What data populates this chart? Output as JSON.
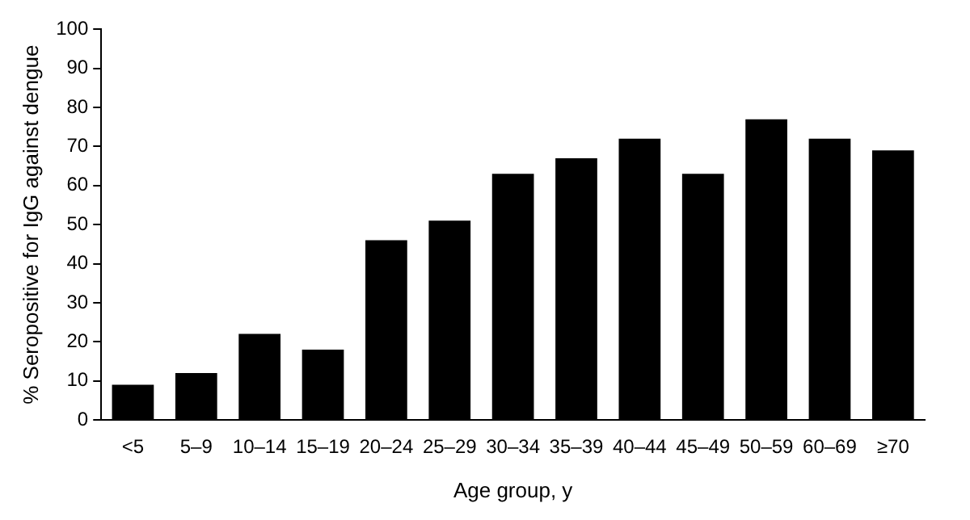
{
  "chart_data": {
    "type": "bar",
    "xlabel": "Age group, y",
    "ylabel": "% Seropositive for IgG against dengue",
    "categories": [
      "<5",
      "5–9",
      "10–14",
      "15–19",
      "20–24",
      "25–29",
      "30–34",
      "35–39",
      "40–44",
      "45–49",
      "50–59",
      "60–69",
      "≥70"
    ],
    "values": [
      9,
      12,
      22,
      18,
      46,
      51,
      63,
      67,
      72,
      63,
      77,
      72,
      69
    ],
    "color": "#000000",
    "ylim": [
      0,
      100
    ],
    "yticks": [
      0,
      10,
      20,
      30,
      40,
      50,
      60,
      70,
      80,
      90,
      100
    ],
    "grid": false,
    "legend": false
  }
}
